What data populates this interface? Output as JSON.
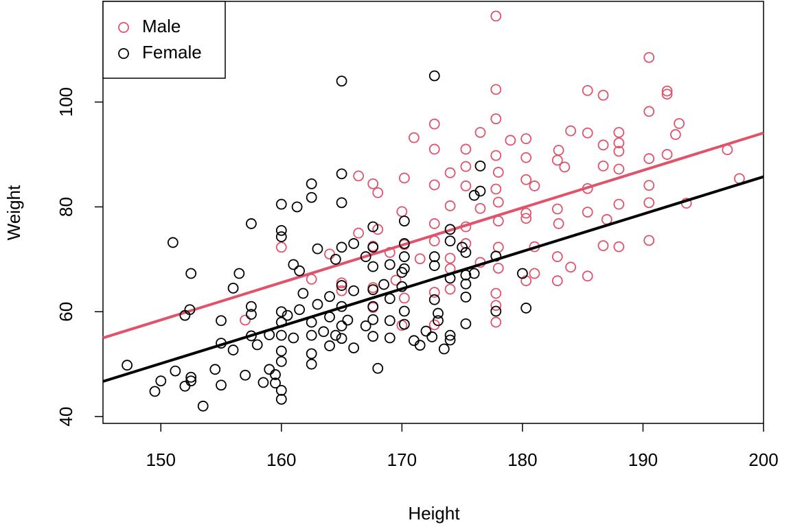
{
  "chart_data": {
    "type": "scatter",
    "x_label": "Height",
    "y_label": "Weight",
    "xlim": [
      145.2,
      200
    ],
    "ylim": [
      38.7,
      119.2
    ],
    "xticks": [
      150,
      160,
      170,
      180,
      190,
      200
    ],
    "yticks": [
      40,
      60,
      80,
      100
    ],
    "legend": "top-left",
    "series": [
      {
        "name": "Male",
        "color": "#DF536B",
        "x": [
          177.8,
          190.5,
          177.8,
          185.4,
          186.7,
          192,
          192,
          190.5,
          172.7,
          177.8,
          193,
          176.5,
          184,
          185.4,
          188,
          171,
          180.3,
          179,
          188,
          192.7,
          172.7,
          175.3,
          186.7,
          188,
          197,
          183,
          180.3,
          177.8,
          190.5,
          192,
          170.2,
          166.4,
          167.6,
          174,
          175.3,
          178,
          180.3,
          182.9,
          183.5,
          186.7,
          188,
          198,
          168,
          172.7,
          175.3,
          177.8,
          181,
          185.4,
          190.5,
          193.6,
          174,
          176.5,
          178,
          180.3,
          182.9,
          185.4,
          188,
          190.5,
          170,
          166.4,
          168,
          172.7,
          175.3,
          178,
          180.3,
          183,
          187,
          160,
          164,
          167.6,
          170.2,
          172.7,
          175.3,
          178,
          181,
          186.7,
          188,
          190.5,
          169,
          171.5,
          174,
          176.5,
          178,
          182.9,
          184,
          157,
          165,
          167.6,
          170.2,
          172.7,
          174,
          177.8,
          177.8,
          177.8,
          180.3,
          182.9,
          185.4,
          181,
          162.5,
          165,
          169.5,
          174,
          167.6,
          170,
          172.7
        ],
        "values": [
          116.4,
          108.5,
          102.4,
          102.2,
          101.3,
          102.1,
          101.5,
          98.2,
          95.8,
          96.8,
          95.9,
          94.2,
          94.5,
          94.1,
          94.2,
          93.2,
          93.0,
          92.7,
          92.2,
          93.8,
          91,
          91,
          91.8,
          90.6,
          90.9,
          90.8,
          89.4,
          89.8,
          89.2,
          90,
          85.5,
          85.9,
          84.4,
          86.5,
          87.7,
          86.6,
          85.2,
          88.9,
          87.6,
          87.8,
          87.2,
          85.4,
          82.7,
          84.2,
          84,
          83.4,
          84,
          83.5,
          84.1,
          80.7,
          80.2,
          79.7,
          80.9,
          78.8,
          79.6,
          79,
          80.5,
          80.8,
          79.1,
          75,
          75.7,
          76.8,
          76.2,
          77.3,
          77.8,
          76.8,
          77.6,
          72.3,
          71,
          72.5,
          72.8,
          73.5,
          73,
          72.3,
          72.4,
          72.6,
          72.4,
          73.6,
          71.3,
          70.1,
          70.2,
          69.4,
          68.3,
          70.5,
          68.5,
          58.4,
          64,
          64.6,
          62.6,
          63.7,
          64.3,
          63.5,
          61.2,
          58.0,
          65.9,
          65.9,
          66.8,
          67.3,
          66.2,
          65.5,
          66,
          68.2,
          60.8,
          57.4,
          57.5
        ],
        "line": {
          "x": [
            145.2,
            200
          ],
          "values": [
            55.0,
            94.1
          ]
        }
      },
      {
        "name": "Female",
        "color": "#000000",
        "x": [
          147.2,
          149.5,
          150,
          151.2,
          152,
          152.5,
          152.5,
          153.5,
          151,
          152.4,
          152,
          152.5,
          154.5,
          155,
          155,
          155,
          156,
          156,
          156.5,
          157,
          157.5,
          157.5,
          157.5,
          157.5,
          158,
          158.5,
          159,
          159,
          159.5,
          159.5,
          160,
          160,
          160,
          160,
          160,
          160,
          160,
          160,
          160,
          160,
          160.5,
          161,
          161,
          161.3,
          161.5,
          161.5,
          161.8,
          162.5,
          162.5,
          162.5,
          162.5,
          162.5,
          162.5,
          163,
          163,
          163.5,
          164,
          164,
          164,
          164.5,
          164.5,
          165,
          165,
          165,
          165,
          165,
          165,
          165,
          165,
          165.5,
          166,
          166,
          166,
          167,
          167,
          167.6,
          167.6,
          167.6,
          167.6,
          167.6,
          167.6,
          167.6,
          168,
          168.5,
          169,
          169,
          169,
          169,
          170,
          170,
          170.2,
          170.2,
          170.2,
          170.2,
          170.2,
          170.2,
          171,
          171.5,
          172,
          172.5,
          172.7,
          172.7,
          172.7,
          172.7,
          173,
          173,
          173.5,
          174,
          174,
          174,
          174,
          174,
          175,
          175.3,
          175.3,
          175.3,
          175.3,
          175.3,
          176,
          176,
          176.5,
          176.5,
          177.8,
          177.8,
          180,
          180.3
        ],
        "values": [
          49.8,
          44.8,
          46.8,
          48.7,
          45.8,
          47.5,
          46.8,
          42.0,
          73.2,
          60.4,
          59.3,
          67.3,
          49,
          46,
          58.3,
          54,
          64.5,
          52.7,
          67.3,
          47.9,
          76.8,
          55.4,
          59.5,
          61,
          53.7,
          46.5,
          55.6,
          49,
          48,
          46.4,
          43.3,
          45,
          80.5,
          75.5,
          74.3,
          60,
          58,
          55.5,
          52.5,
          50.5,
          59.3,
          55,
          69,
          80,
          60.4,
          67.8,
          63.5,
          84.4,
          81.8,
          58,
          55.5,
          52,
          50,
          72,
          61.4,
          56.2,
          62.9,
          59,
          53.5,
          70,
          55.5,
          104,
          86.3,
          80.8,
          72.3,
          65,
          61,
          57.3,
          54.9,
          58.4,
          73,
          64,
          53.1,
          70.5,
          57.3,
          76.2,
          72.3,
          68.6,
          64.2,
          61,
          58.5,
          55.3,
          49.2,
          65.2,
          69,
          62.5,
          58.3,
          55,
          67.5,
          64.8,
          77.3,
          73,
          70.5,
          68.2,
          60.1,
          57.6,
          54.5,
          53.6,
          56.3,
          55.2,
          105,
          70.5,
          68.8,
          62.3,
          59.7,
          58.3,
          52.9,
          75.7,
          73.5,
          66.4,
          55.5,
          54.6,
          72.3,
          71.3,
          67,
          65.3,
          62.8,
          57.7,
          67.3,
          82.2,
          87.8,
          83,
          70.6,
          60.1,
          67.3,
          60.7
        ],
        "line": {
          "x": [
            145.2,
            200
          ],
          "values": [
            46.7,
            85.75
          ]
        }
      }
    ]
  }
}
